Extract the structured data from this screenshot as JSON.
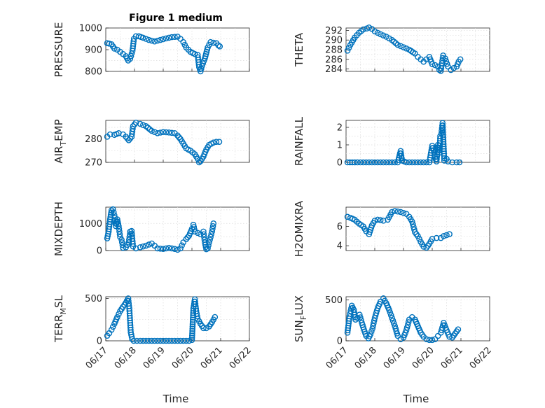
{
  "title": "Figure 1 medium",
  "chart_data": [
    {
      "type": "scatter",
      "ylabel_base": "PRESSURE",
      "ylim": [
        800,
        1000
      ],
      "yticks": [
        800,
        900,
        1000
      ],
      "xlim": [
        0,
        5
      ],
      "xtick_labels": [
        "06/17",
        "06/18",
        "06/19",
        "06/20",
        "06/21",
        "06/22"
      ],
      "points": [
        [
          0.05,
          930
        ],
        [
          0.12,
          928
        ],
        [
          0.2,
          925
        ],
        [
          0.3,
          905
        ],
        [
          0.4,
          900
        ],
        [
          0.5,
          890
        ],
        [
          0.6,
          880
        ],
        [
          0.7,
          870
        ],
        [
          0.78,
          850
        ],
        [
          0.85,
          858
        ],
        [
          0.93,
          895
        ],
        [
          0.98,
          950
        ],
        [
          1.05,
          962
        ],
        [
          1.15,
          962
        ],
        [
          1.3,
          955
        ],
        [
          1.5,
          945
        ],
        [
          1.7,
          938
        ],
        [
          1.9,
          945
        ],
        [
          2.1,
          952
        ],
        [
          2.3,
          958
        ],
        [
          2.5,
          960
        ],
        [
          2.6,
          950
        ],
        [
          2.7,
          935
        ],
        [
          2.8,
          910
        ],
        [
          2.95,
          890
        ],
        [
          3.1,
          880
        ],
        [
          3.2,
          876
        ],
        [
          3.25,
          820
        ],
        [
          3.3,
          800
        ],
        [
          3.35,
          825
        ],
        [
          3.45,
          860
        ],
        [
          3.55,
          910
        ],
        [
          3.65,
          935
        ],
        [
          3.75,
          932
        ],
        [
          3.85,
          930
        ],
        [
          3.92,
          920
        ],
        [
          3.97,
          915
        ]
      ]
    },
    {
      "type": "scatter",
      "ylabel_base": "THETA",
      "ylim": [
        283.5,
        292.5
      ],
      "yticks": [
        284,
        286,
        288,
        290,
        292
      ],
      "xlim": [
        0,
        5
      ],
      "xtick_labels": [
        "06/17",
        "06/18",
        "06/19",
        "06/20",
        "06/21",
        "06/22"
      ],
      "points": [
        [
          0.05,
          287.8
        ],
        [
          0.15,
          289.0
        ],
        [
          0.3,
          290.5
        ],
        [
          0.45,
          291.5
        ],
        [
          0.6,
          292.2
        ],
        [
          0.72,
          292.4
        ],
        [
          0.8,
          292.6
        ],
        [
          0.9,
          292.3
        ],
        [
          1.0,
          291.8
        ],
        [
          1.2,
          291.2
        ],
        [
          1.4,
          290.7
        ],
        [
          1.6,
          290.0
        ],
        [
          1.8,
          289.0
        ],
        [
          2.0,
          288.5
        ],
        [
          2.2,
          288.0
        ],
        [
          2.4,
          287.2
        ],
        [
          2.5,
          286.5
        ],
        [
          2.6,
          286.0
        ],
        [
          2.7,
          285.5
        ],
        [
          2.8,
          286.0
        ],
        [
          2.9,
          286.5
        ],
        [
          3.0,
          285.0
        ],
        [
          3.1,
          284.8
        ],
        [
          3.2,
          284.5
        ],
        [
          3.25,
          283.8
        ],
        [
          3.3,
          283.6
        ],
        [
          3.38,
          286.8
        ],
        [
          3.45,
          286.2
        ],
        [
          3.55,
          284.5
        ],
        [
          3.65,
          283.8
        ],
        [
          3.75,
          284.2
        ],
        [
          3.85,
          284.5
        ],
        [
          3.92,
          285.5
        ],
        [
          3.98,
          286.0
        ]
      ]
    },
    {
      "type": "scatter",
      "ylabel_base": "AIR",
      "ylabel_sub": "T",
      "ylabel_rest": "EMP",
      "ylim": [
        270,
        288
      ],
      "yticks": [
        270,
        280
      ],
      "xlim": [
        0,
        5
      ],
      "xtick_labels": [
        "06/17",
        "06/18",
        "06/19",
        "06/20",
        "06/21",
        "06/22"
      ],
      "points": [
        [
          0.05,
          281.0
        ],
        [
          0.15,
          282.0
        ],
        [
          0.3,
          281.8
        ],
        [
          0.45,
          282.5
        ],
        [
          0.6,
          282.0
        ],
        [
          0.7,
          281.0
        ],
        [
          0.8,
          279.5
        ],
        [
          0.9,
          281.0
        ],
        [
          0.95,
          285.5
        ],
        [
          1.05,
          287.0
        ],
        [
          1.2,
          286.5
        ],
        [
          1.4,
          285.5
        ],
        [
          1.6,
          283.5
        ],
        [
          1.8,
          282.5
        ],
        [
          2.0,
          283.0
        ],
        [
          2.2,
          282.8
        ],
        [
          2.4,
          282.5
        ],
        [
          2.5,
          281.5
        ],
        [
          2.6,
          280.0
        ],
        [
          2.7,
          278.0
        ],
        [
          2.8,
          276.0
        ],
        [
          2.95,
          275.0
        ],
        [
          3.1,
          273.5
        ],
        [
          3.2,
          271.5
        ],
        [
          3.25,
          270.0
        ],
        [
          3.3,
          270.5
        ],
        [
          3.4,
          272.5
        ],
        [
          3.5,
          275.5
        ],
        [
          3.6,
          277.5
        ],
        [
          3.75,
          278.5
        ],
        [
          3.85,
          278.8
        ],
        [
          3.95,
          278.8
        ]
      ]
    },
    {
      "type": "scatter",
      "ylabel_base": "RAINFALL",
      "ylim": [
        0,
        2.4
      ],
      "yticks": [
        0,
        1,
        2
      ],
      "xlim": [
        0,
        5
      ],
      "xtick_labels": [
        "06/17",
        "06/18",
        "06/19",
        "06/20",
        "06/21",
        "06/22"
      ],
      "points": [
        [
          0.05,
          0
        ],
        [
          0.3,
          0
        ],
        [
          0.5,
          0
        ],
        [
          0.7,
          0
        ],
        [
          0.9,
          0
        ],
        [
          1.1,
          0
        ],
        [
          1.3,
          0
        ],
        [
          1.5,
          0
        ],
        [
          1.7,
          0
        ],
        [
          1.8,
          0
        ],
        [
          1.9,
          0.65
        ],
        [
          1.95,
          0.1
        ],
        [
          2.1,
          0
        ],
        [
          2.3,
          0
        ],
        [
          2.5,
          0
        ],
        [
          2.7,
          0
        ],
        [
          2.9,
          0
        ],
        [
          3.0,
          0.95
        ],
        [
          3.05,
          0.7
        ],
        [
          3.1,
          0.3
        ],
        [
          3.15,
          0.05
        ],
        [
          3.2,
          1.0
        ],
        [
          3.25,
          0.55
        ],
        [
          3.28,
          1.5
        ],
        [
          3.32,
          1.65
        ],
        [
          3.36,
          2.25
        ],
        [
          3.42,
          0.1
        ],
        [
          3.5,
          0.2
        ],
        [
          3.55,
          0.05
        ],
        [
          3.7,
          0
        ],
        [
          3.85,
          0
        ],
        [
          3.95,
          0
        ]
      ]
    },
    {
      "type": "scatter",
      "ylabel_base": "MIXDEPTH",
      "ylim": [
        0,
        1600
      ],
      "yticks": [
        0,
        1000
      ],
      "xlim": [
        0,
        5
      ],
      "xtick_labels": [
        "06/17",
        "06/18",
        "06/19",
        "06/20",
        "06/21",
        "06/22"
      ],
      "points": [
        [
          0.05,
          450
        ],
        [
          0.1,
          700
        ],
        [
          0.15,
          1150
        ],
        [
          0.2,
          1480
        ],
        [
          0.25,
          1520
        ],
        [
          0.3,
          1300
        ],
        [
          0.35,
          900
        ],
        [
          0.4,
          1150
        ],
        [
          0.45,
          900
        ],
        [
          0.5,
          500
        ],
        [
          0.55,
          400
        ],
        [
          0.6,
          100
        ],
        [
          0.7,
          120
        ],
        [
          0.8,
          300
        ],
        [
          0.85,
          700
        ],
        [
          0.9,
          720
        ],
        [
          0.95,
          150
        ],
        [
          1.05,
          80
        ],
        [
          1.2,
          120
        ],
        [
          1.4,
          180
        ],
        [
          1.6,
          260
        ],
        [
          1.7,
          180
        ],
        [
          1.8,
          80
        ],
        [
          2.0,
          60
        ],
        [
          2.2,
          100
        ],
        [
          2.4,
          60
        ],
        [
          2.5,
          30
        ],
        [
          2.6,
          80
        ],
        [
          2.7,
          300
        ],
        [
          2.8,
          420
        ],
        [
          2.9,
          550
        ],
        [
          3.0,
          800
        ],
        [
          3.05,
          950
        ],
        [
          3.1,
          700
        ],
        [
          3.2,
          650
        ],
        [
          3.3,
          600
        ],
        [
          3.4,
          700
        ],
        [
          3.45,
          300
        ],
        [
          3.5,
          50
        ],
        [
          3.55,
          80
        ],
        [
          3.6,
          300
        ],
        [
          3.65,
          500
        ],
        [
          3.7,
          700
        ],
        [
          3.75,
          1000
        ]
      ]
    },
    {
      "type": "scatter",
      "ylabel_base": "H2OMIXRA",
      "ylim": [
        3.5,
        8
      ],
      "yticks": [
        4,
        6
      ],
      "xlim": [
        0,
        5
      ],
      "xtick_labels": [
        "06/17",
        "06/18",
        "06/19",
        "06/20",
        "06/21",
        "06/22"
      ],
      "points": [
        [
          0.05,
          7.0
        ],
        [
          0.15,
          6.9
        ],
        [
          0.3,
          6.7
        ],
        [
          0.45,
          6.3
        ],
        [
          0.6,
          6.0
        ],
        [
          0.7,
          5.5
        ],
        [
          0.8,
          5.2
        ],
        [
          0.9,
          6.1
        ],
        [
          1.0,
          6.6
        ],
        [
          1.1,
          6.7
        ],
        [
          1.3,
          6.6
        ],
        [
          1.45,
          6.7
        ],
        [
          1.6,
          7.5
        ],
        [
          1.7,
          7.6
        ],
        [
          1.9,
          7.5
        ],
        [
          2.1,
          7.3
        ],
        [
          2.2,
          7.0
        ],
        [
          2.3,
          6.5
        ],
        [
          2.4,
          5.4
        ],
        [
          2.5,
          5.0
        ],
        [
          2.6,
          4.4
        ],
        [
          2.7,
          3.9
        ],
        [
          2.8,
          3.8
        ],
        [
          2.9,
          4.2
        ],
        [
          3.0,
          4.7
        ],
        [
          3.15,
          4.8
        ],
        [
          3.3,
          4.8
        ],
        [
          3.4,
          5.0
        ],
        [
          3.5,
          5.1
        ],
        [
          3.6,
          5.2
        ]
      ]
    },
    {
      "type": "scatter",
      "ylabel_base": "TERR",
      "ylabel_sub": "M",
      "ylabel_rest": "SL",
      "ylim": [
        0,
        520
      ],
      "yticks": [
        0,
        500
      ],
      "xlim": [
        0,
        5
      ],
      "xtick_labels": [
        "06/17",
        "06/18",
        "06/19",
        "06/20",
        "06/21",
        "06/22"
      ],
      "points": [
        [
          0.05,
          60
        ],
        [
          0.12,
          90
        ],
        [
          0.2,
          130
        ],
        [
          0.3,
          200
        ],
        [
          0.4,
          280
        ],
        [
          0.5,
          350
        ],
        [
          0.6,
          400
        ],
        [
          0.7,
          450
        ],
        [
          0.78,
          500
        ],
        [
          0.82,
          380
        ],
        [
          0.87,
          100
        ],
        [
          0.92,
          20
        ],
        [
          0.97,
          0
        ],
        [
          1.2,
          0
        ],
        [
          1.5,
          0
        ],
        [
          1.8,
          0
        ],
        [
          2.1,
          0
        ],
        [
          2.4,
          0
        ],
        [
          2.7,
          0
        ],
        [
          2.9,
          0
        ],
        [
          3.0,
          10
        ],
        [
          3.05,
          380
        ],
        [
          3.1,
          490
        ],
        [
          3.15,
          350
        ],
        [
          3.2,
          260
        ],
        [
          3.3,
          200
        ],
        [
          3.4,
          150
        ],
        [
          3.5,
          150
        ],
        [
          3.6,
          170
        ],
        [
          3.7,
          220
        ],
        [
          3.8,
          280
        ]
      ]
    },
    {
      "type": "scatter",
      "ylabel_base": "SUN",
      "ylabel_sub": "F",
      "ylabel_rest": "LUX",
      "ylim": [
        0,
        540
      ],
      "yticks": [
        0,
        500
      ],
      "xlim": [
        0,
        5
      ],
      "xtick_labels": [
        "06/17",
        "06/18",
        "06/19",
        "06/20",
        "06/21",
        "06/22"
      ],
      "points": [
        [
          0.05,
          100
        ],
        [
          0.12,
          300
        ],
        [
          0.2,
          430
        ],
        [
          0.27,
          380
        ],
        [
          0.33,
          260
        ],
        [
          0.4,
          280
        ],
        [
          0.47,
          320
        ],
        [
          0.55,
          220
        ],
        [
          0.62,
          140
        ],
        [
          0.7,
          60
        ],
        [
          0.78,
          30
        ],
        [
          0.85,
          80
        ],
        [
          0.92,
          150
        ],
        [
          1.0,
          280
        ],
        [
          1.1,
          400
        ],
        [
          1.2,
          480
        ],
        [
          1.3,
          520
        ],
        [
          1.4,
          460
        ],
        [
          1.5,
          380
        ],
        [
          1.6,
          280
        ],
        [
          1.7,
          180
        ],
        [
          1.8,
          60
        ],
        [
          1.9,
          20
        ],
        [
          2.0,
          40
        ],
        [
          2.1,
          130
        ],
        [
          2.2,
          260
        ],
        [
          2.3,
          290
        ],
        [
          2.4,
          260
        ],
        [
          2.5,
          180
        ],
        [
          2.6,
          100
        ],
        [
          2.7,
          50
        ],
        [
          2.8,
          20
        ],
        [
          2.9,
          10
        ],
        [
          3.0,
          10
        ],
        [
          3.1,
          20
        ],
        [
          3.2,
          60
        ],
        [
          3.3,
          100
        ],
        [
          3.4,
          220
        ],
        [
          3.5,
          130
        ],
        [
          3.6,
          50
        ],
        [
          3.7,
          40
        ],
        [
          3.8,
          90
        ],
        [
          3.9,
          140
        ]
      ]
    }
  ],
  "xlabel": "Time"
}
